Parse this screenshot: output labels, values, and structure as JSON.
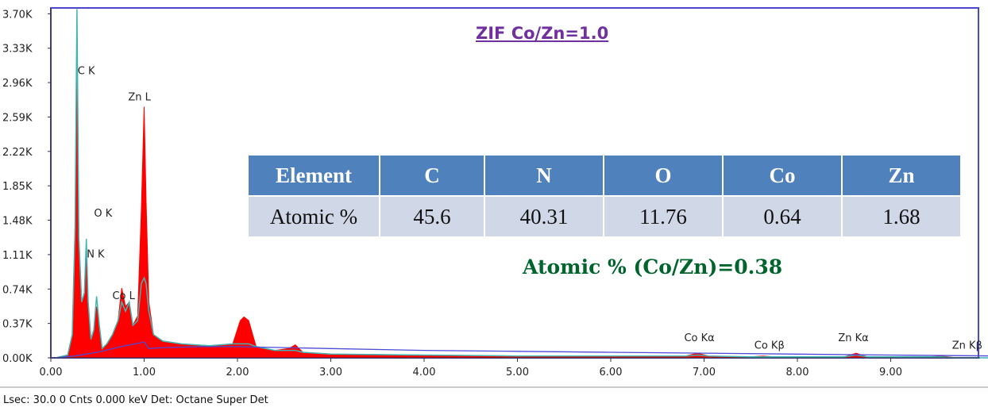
{
  "chart_data": {
    "type": "area",
    "title": "ZIF Co/Zn=1.0",
    "xlabel": "",
    "ylabel": "",
    "xlim": [
      0,
      10.2
    ],
    "ylim": [
      0,
      3.7
    ],
    "x_ticks": [
      "0.00",
      "1.00",
      "2.00",
      "3.00",
      "4.00",
      "5.00",
      "6.00",
      "7.00",
      "8.00",
      "9.00"
    ],
    "y_ticks": [
      "0.00K",
      "0.37K",
      "0.74K",
      "1.11K",
      "1.48K",
      "1.85K",
      "2.22K",
      "2.59K",
      "2.96K",
      "3.33K",
      "3.70K"
    ],
    "series": [
      {
        "color": "#ff0000",
        "x": [
          0.05,
          0.18,
          0.23,
          0.26,
          0.28,
          0.3,
          0.33,
          0.36,
          0.38,
          0.4,
          0.43,
          0.46,
          0.49,
          0.52,
          0.55,
          0.6,
          0.66,
          0.72,
          0.76,
          0.8,
          0.84,
          0.88,
          0.93,
          0.97,
          1.0,
          1.02,
          1.05,
          1.1,
          1.2,
          1.4,
          1.7,
          1.95,
          2.03,
          2.07,
          2.12,
          2.2,
          2.4,
          2.55,
          2.62,
          2.7,
          3.0,
          4.0,
          5.0,
          6.0,
          6.8,
          6.93,
          7.05,
          7.5,
          7.63,
          7.75,
          8.5,
          8.63,
          8.75,
          9.4,
          9.55,
          9.7,
          10.2
        ],
        "values": [
          0.0,
          0.03,
          0.25,
          1.4,
          3.05,
          1.3,
          0.6,
          0.7,
          1.22,
          0.6,
          0.2,
          0.3,
          0.55,
          0.35,
          0.1,
          0.15,
          0.25,
          0.4,
          0.75,
          0.55,
          0.6,
          0.35,
          0.45,
          1.6,
          2.7,
          1.7,
          0.6,
          0.25,
          0.18,
          0.15,
          0.13,
          0.15,
          0.4,
          0.44,
          0.4,
          0.12,
          0.08,
          0.1,
          0.14,
          0.06,
          0.04,
          0.03,
          0.02,
          0.02,
          0.02,
          0.05,
          0.02,
          0.01,
          0.02,
          0.01,
          0.01,
          0.05,
          0.01,
          0.01,
          0.02,
          0.0,
          0.0
        ]
      },
      {
        "color": "#3fb6b2",
        "x": [
          0.05,
          0.18,
          0.23,
          0.26,
          0.28,
          0.3,
          0.33,
          0.36,
          0.38,
          0.4,
          0.43,
          0.46,
          0.49,
          0.52,
          0.55,
          0.6,
          0.66,
          0.72,
          0.76,
          0.8,
          0.84,
          0.88,
          0.93,
          0.97,
          1.0,
          1.02,
          1.05,
          1.1,
          1.2,
          1.4,
          1.7,
          1.95,
          2.03,
          2.07,
          2.12,
          2.2,
          2.4,
          2.55,
          2.62,
          2.7,
          3.0,
          4.0,
          5.0,
          6.0,
          6.8,
          6.93,
          7.05,
          7.5,
          7.63,
          7.75,
          8.5,
          8.63,
          8.75,
          9.4,
          9.55,
          9.7,
          10.2
        ],
        "values": [
          0.0,
          0.03,
          0.25,
          1.4,
          3.75,
          1.3,
          0.6,
          0.7,
          1.28,
          0.6,
          0.2,
          0.3,
          0.66,
          0.35,
          0.1,
          0.15,
          0.25,
          0.4,
          0.6,
          0.5,
          0.6,
          0.35,
          0.4,
          0.8,
          0.86,
          0.8,
          0.5,
          0.25,
          0.18,
          0.15,
          0.13,
          0.15,
          0.15,
          0.15,
          0.15,
          0.12,
          0.08,
          0.08,
          0.08,
          0.06,
          0.04,
          0.03,
          0.02,
          0.02,
          0.02,
          0.03,
          0.02,
          0.01,
          0.01,
          0.01,
          0.01,
          0.03,
          0.01,
          0.01,
          0.01,
          0.0,
          0.0
        ]
      },
      {
        "color": "#4b4bd8",
        "x": [
          0.05,
          0.25,
          0.5,
          0.75,
          1.0,
          1.05,
          1.2,
          1.6,
          2.0,
          3.0,
          4.0,
          5.0,
          6.0,
          7.0,
          8.0,
          9.0,
          10.2
        ],
        "values": [
          0.0,
          0.02,
          0.06,
          0.12,
          0.17,
          0.1,
          0.11,
          0.12,
          0.12,
          0.1,
          0.08,
          0.07,
          0.06,
          0.05,
          0.04,
          0.03,
          0.02
        ]
      }
    ],
    "peak_labels": [
      {
        "label": "C K",
        "x": 0.38,
        "y": 3.05
      },
      {
        "label": "Zn L",
        "x": 0.95,
        "y": 2.77
      },
      {
        "label": "O K",
        "x": 0.56,
        "y": 1.52
      },
      {
        "label": "N K",
        "x": 0.48,
        "y": 1.08
      },
      {
        "label": "Co L",
        "x": 0.78,
        "y": 0.63
      },
      {
        "label": "Co Kα",
        "x": 6.95,
        "y": 0.18
      },
      {
        "label": "Co Kβ",
        "x": 7.7,
        "y": 0.1
      },
      {
        "label": "Zn Kα",
        "x": 8.6,
        "y": 0.18
      },
      {
        "label": "Zn Kβ",
        "x": 9.82,
        "y": 0.1
      }
    ]
  },
  "table": {
    "headers": [
      "Element",
      "C",
      "N",
      "O",
      "Co",
      "Zn"
    ],
    "row": [
      "Atomic %",
      "45.6",
      "40.31",
      "11.76",
      "0.64",
      "1.68"
    ]
  },
  "ratio_text": "Atomic % (Co/Zn)=0.38",
  "status_text": "Lsec: 30.0 0 Cnts  0.000 keV Det: Octane Super Det"
}
